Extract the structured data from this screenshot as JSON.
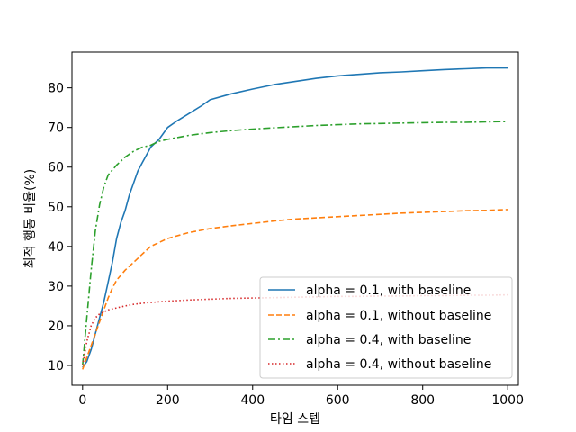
{
  "chart_data": {
    "type": "line",
    "xlabel": "타임 스텝",
    "ylabel": "최적 행동 비율(%)",
    "xlim": [
      -25,
      1025
    ],
    "ylim": [
      5,
      89
    ],
    "xticks": [
      0,
      200,
      400,
      600,
      800,
      1000
    ],
    "yticks": [
      10,
      20,
      30,
      40,
      50,
      60,
      70,
      80
    ],
    "grid": false,
    "legend_position": "lower-right",
    "series": [
      {
        "name": "alpha = 0.1, with baseline",
        "color": "#1f77b4",
        "dash": "solid",
        "x": [
          0,
          10,
          20,
          30,
          40,
          50,
          60,
          70,
          80,
          90,
          100,
          110,
          120,
          130,
          140,
          150,
          160,
          180,
          200,
          220,
          250,
          280,
          300,
          350,
          400,
          450,
          500,
          550,
          600,
          650,
          700,
          750,
          800,
          850,
          900,
          950,
          1000
        ],
        "y": [
          9.5,
          11,
          14,
          18,
          22,
          26,
          31,
          36,
          42,
          46,
          49,
          53,
          56,
          59,
          61,
          63,
          65,
          67,
          70,
          71.5,
          73.5,
          75.5,
          77,
          78.5,
          79.7,
          80.8,
          81.6,
          82.4,
          83,
          83.4,
          83.8,
          84,
          84.3,
          84.6,
          84.8,
          85,
          85
        ]
      },
      {
        "name": "alpha = 0.1, without baseline",
        "color": "#ff7f0e",
        "dash": "dashed",
        "x": [
          0,
          10,
          20,
          30,
          40,
          50,
          60,
          70,
          80,
          100,
          120,
          140,
          160,
          180,
          200,
          250,
          300,
          350,
          400,
          450,
          500,
          550,
          600,
          650,
          700,
          750,
          800,
          850,
          900,
          950,
          1000
        ],
        "y": [
          9,
          12,
          15,
          18,
          21,
          24,
          27,
          29.5,
          31.5,
          34,
          36,
          38,
          40,
          41,
          42,
          43.5,
          44.5,
          45.2,
          45.8,
          46.4,
          46.9,
          47.2,
          47.5,
          47.8,
          48.1,
          48.4,
          48.6,
          48.8,
          49,
          49.1,
          49.3
        ]
      },
      {
        "name": "alpha = 0.4, with baseline",
        "color": "#2ca02c",
        "dash": "dashdot",
        "x": [
          0,
          10,
          20,
          30,
          40,
          50,
          60,
          80,
          100,
          120,
          140,
          160,
          180,
          200,
          250,
          300,
          350,
          400,
          450,
          500,
          550,
          600,
          650,
          700,
          750,
          800,
          850,
          900,
          950,
          1000
        ],
        "y": [
          10,
          22,
          34,
          44,
          50.5,
          55,
          58,
          60.5,
          62.5,
          64,
          65,
          65.5,
          66.5,
          67,
          68,
          68.7,
          69.2,
          69.6,
          69.9,
          70.2,
          70.5,
          70.7,
          70.9,
          71,
          71.1,
          71.2,
          71.3,
          71.3,
          71.4,
          71.5
        ]
      },
      {
        "name": "alpha = 0.4, without baseline",
        "color": "#d62728",
        "dash": "dotted",
        "x": [
          0,
          10,
          20,
          30,
          40,
          50,
          60,
          80,
          100,
          120,
          150,
          200,
          250,
          300,
          350,
          400,
          450,
          500,
          550,
          600,
          650,
          700,
          750,
          800,
          850,
          900,
          950,
          1000
        ],
        "y": [
          10,
          16,
          20,
          22,
          23,
          23.5,
          24,
          24.5,
          25,
          25.4,
          25.8,
          26.2,
          26.5,
          26.7,
          26.9,
          27,
          27.1,
          27.2,
          27.3,
          27.4,
          27.4,
          27.5,
          27.5,
          27.6,
          27.6,
          27.7,
          27.7,
          27.8
        ]
      }
    ]
  }
}
